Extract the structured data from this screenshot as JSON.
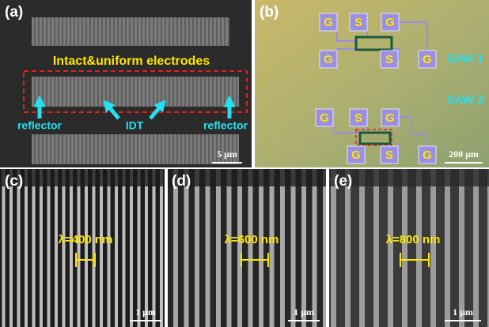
{
  "panel_a": {
    "label": "(a)",
    "title": "Intact&uniform electrodes",
    "labels": [
      "reflector",
      "IDT",
      "reflector"
    ],
    "scale_bar": "5 μm"
  },
  "panel_b": {
    "label": "(b)",
    "device_1": {
      "top_pads": [
        "G",
        "S",
        "G"
      ],
      "bottom_pads": [
        "G",
        "S",
        "G"
      ],
      "name": "SAW 1"
    },
    "device_2": {
      "top_pads": [
        "G",
        "S",
        "G"
      ],
      "bottom_pads": [
        "G",
        "S",
        "G"
      ],
      "name": "SAW 2"
    },
    "scale_bar": "200 μm"
  },
  "panel_c": {
    "label": "(c)",
    "wavelength": "λ=400 nm",
    "scale_bar": "1 μm"
  },
  "panel_d": {
    "label": "(d)",
    "wavelength": "λ=600 nm",
    "scale_bar": "1 μm"
  },
  "panel_e": {
    "label": "(e)",
    "wavelength": "λ=800 nm",
    "scale_bar": "1 μm"
  }
}
